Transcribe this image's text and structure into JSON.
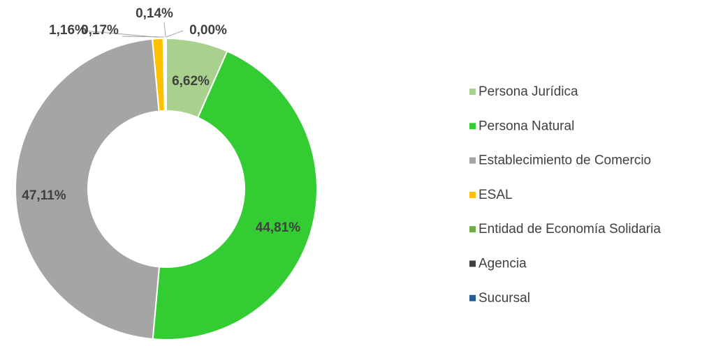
{
  "chart_data": {
    "type": "donut",
    "categories": [
      "Persona Jurídica",
      "Persona Natural",
      "Establecimiento de Comercio",
      "ESAL",
      "Entidad de Economía Solidaria",
      "Agencia",
      "Sucursal"
    ],
    "values": [
      6.62,
      44.81,
      47.11,
      1.16,
      0.17,
      0.14,
      0.0
    ],
    "value_labels": [
      "6,62%",
      "44,81%",
      "47,11%",
      "1,16%",
      "0,17%",
      "0,14%",
      "0,00%"
    ],
    "colors": [
      "#a9d18e",
      "#33cc33",
      "#a5a5a5",
      "#ffc000",
      "#70ad47",
      "#404040",
      "#255e91"
    ],
    "legend": "right"
  }
}
